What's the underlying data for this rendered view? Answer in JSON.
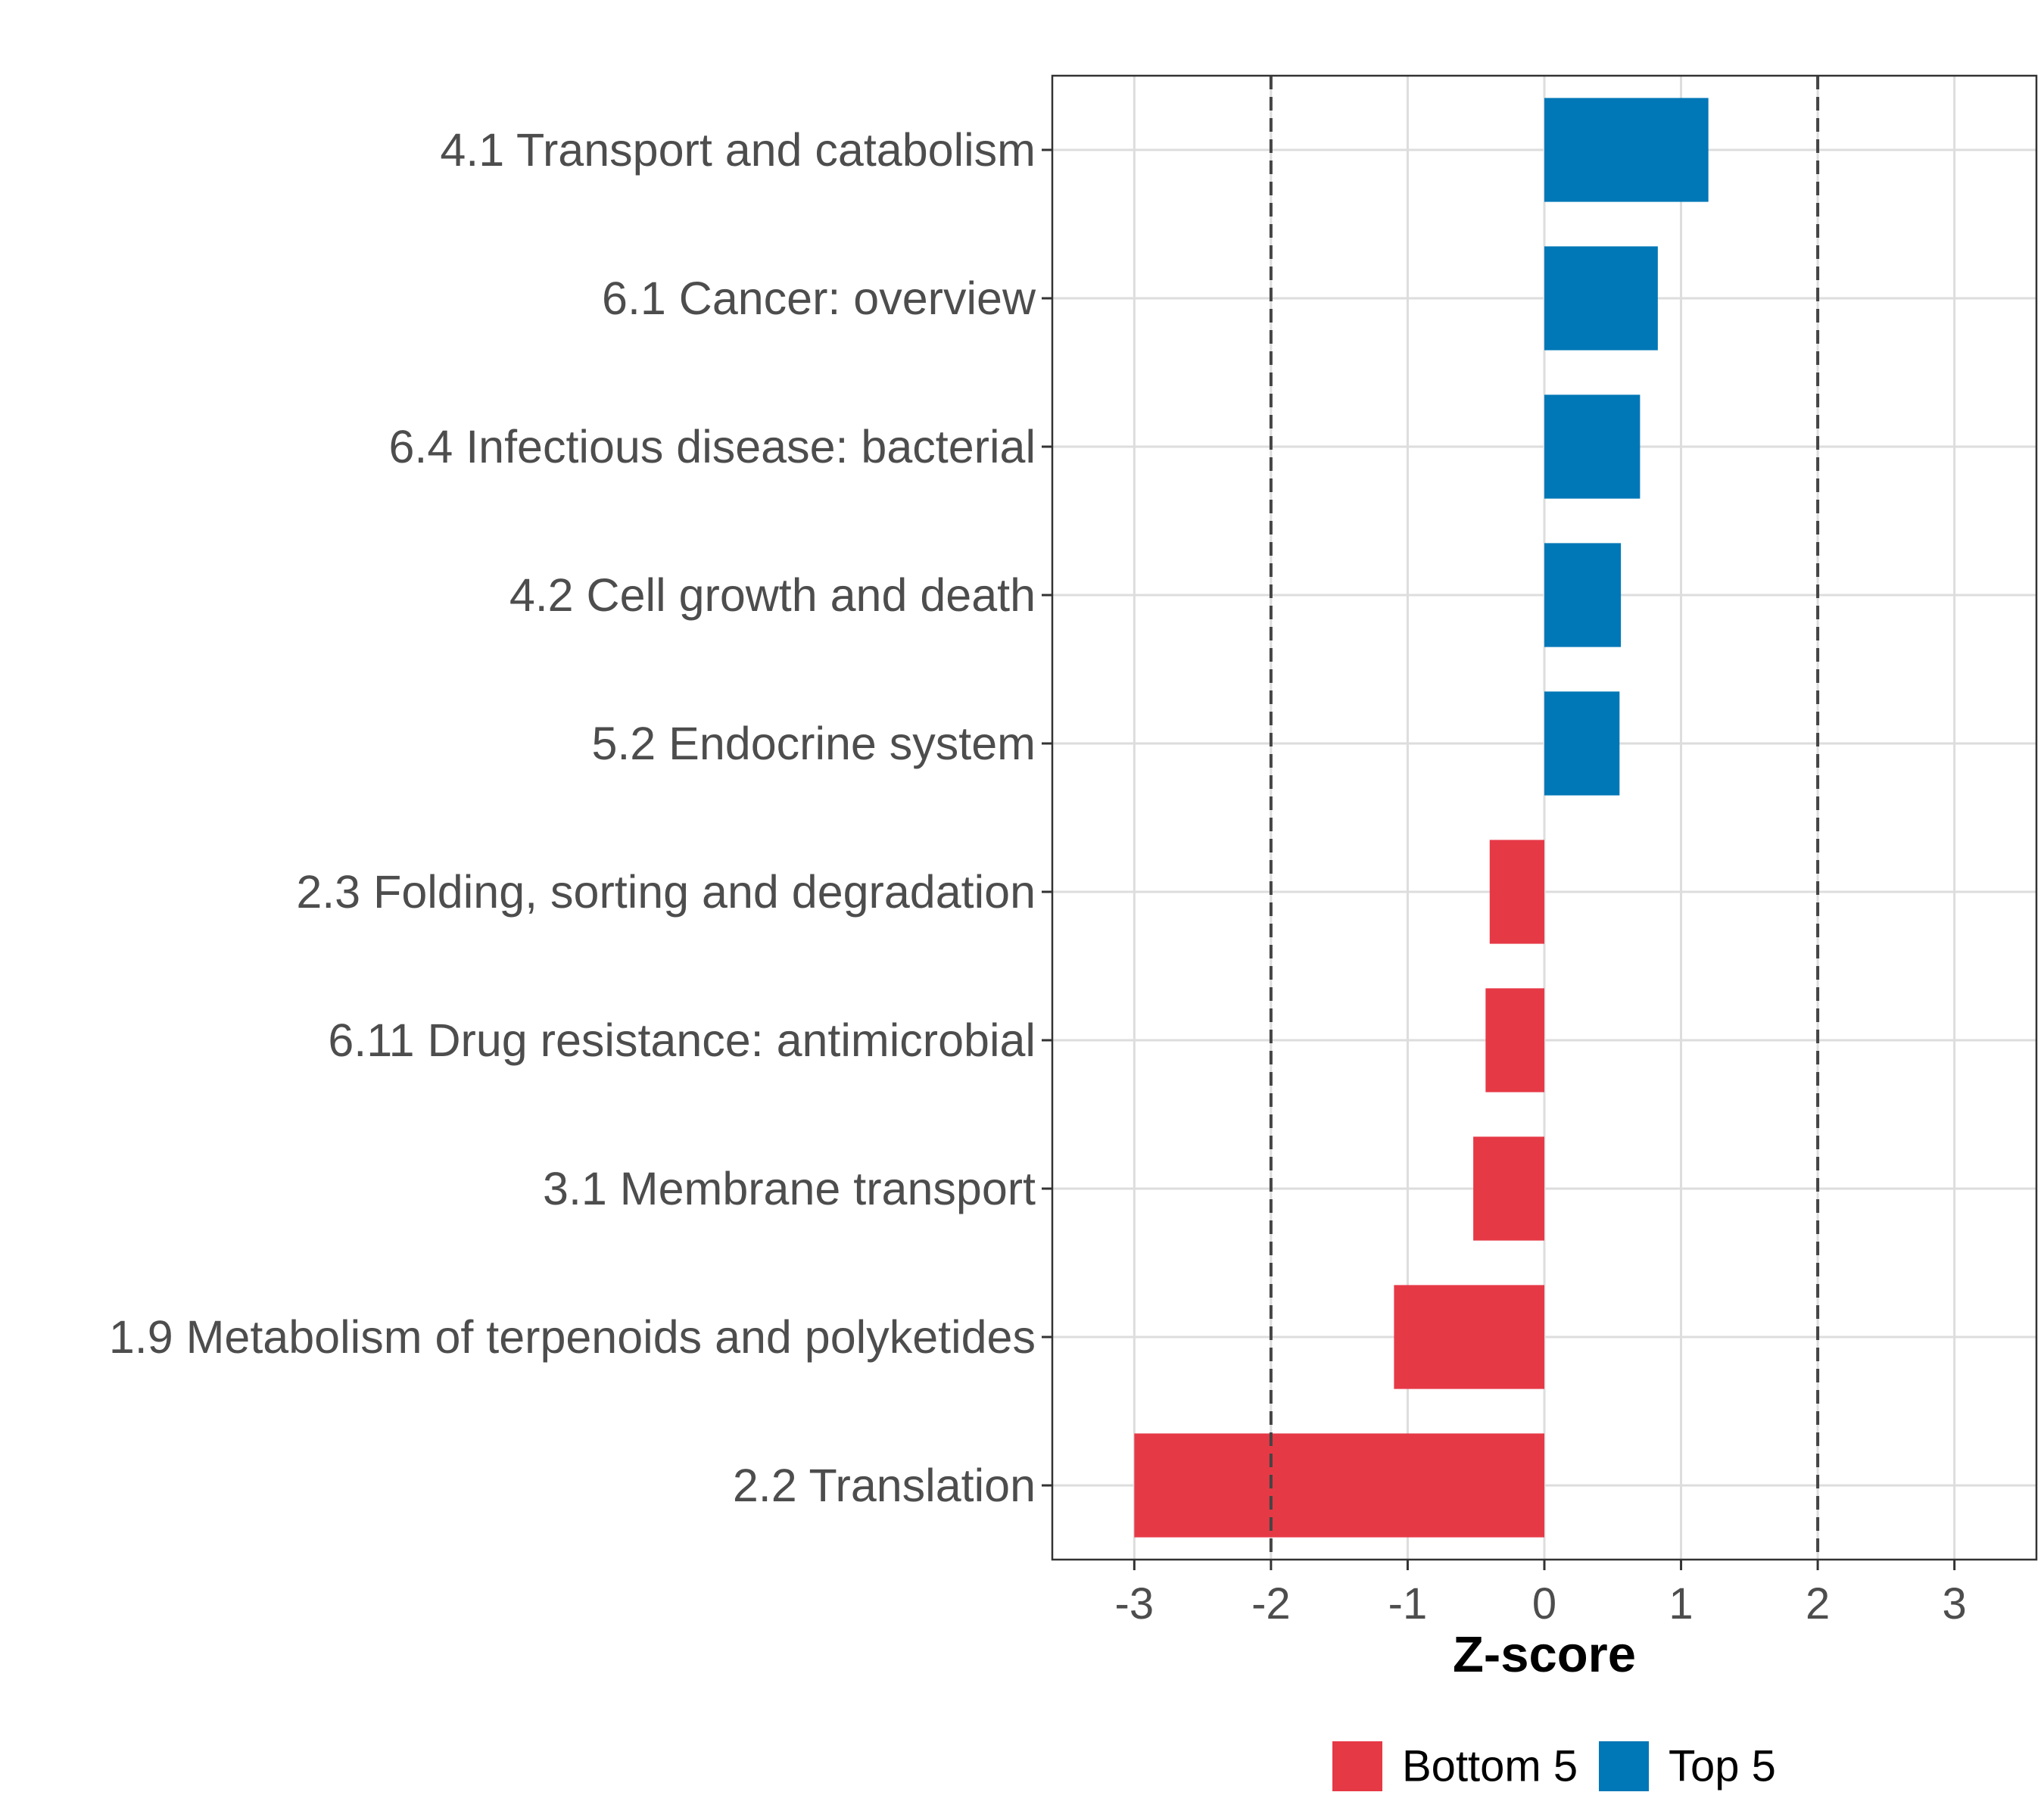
{
  "chart_data": {
    "type": "bar",
    "orientation": "horizontal",
    "title": "",
    "xlabel": "Z-score",
    "ylabel": "",
    "xlim": [
      -3.6,
      3.6
    ],
    "x_ticks": [
      -3,
      -2,
      -1,
      0,
      1,
      2,
      3
    ],
    "x_tick_labels": [
      "-3",
      "-2",
      "-1",
      "0",
      "1",
      "2",
      "3"
    ],
    "reference_lines": [
      -2,
      2
    ],
    "grid": true,
    "categories": [
      "4.1 Transport and catabolism",
      "6.1 Cancer: overview",
      "6.4 Infectious disease: bacterial",
      "4.2 Cell growth and death",
      "5.2 Endocrine system",
      "2.3 Folding, sorting and degradation",
      "6.11 Drug resistance: antimicrobial",
      "3.1 Membrane transport",
      "1.9 Metabolism of terpenoids and polyketides",
      "2.2 Translation"
    ],
    "values": [
      1.2,
      0.83,
      0.7,
      0.56,
      0.55,
      -0.4,
      -0.43,
      -0.52,
      -1.1,
      -3.0
    ],
    "groups": [
      "Top 5",
      "Top 5",
      "Top 5",
      "Top 5",
      "Top 5",
      "Bottom 5",
      "Bottom 5",
      "Bottom 5",
      "Bottom 5",
      "Bottom 5"
    ],
    "legend": {
      "position": "bottom",
      "entries": [
        {
          "label": "Bottom 5",
          "color": "#e63946"
        },
        {
          "label": "Top 5",
          "color": "#0077b6"
        }
      ]
    }
  }
}
